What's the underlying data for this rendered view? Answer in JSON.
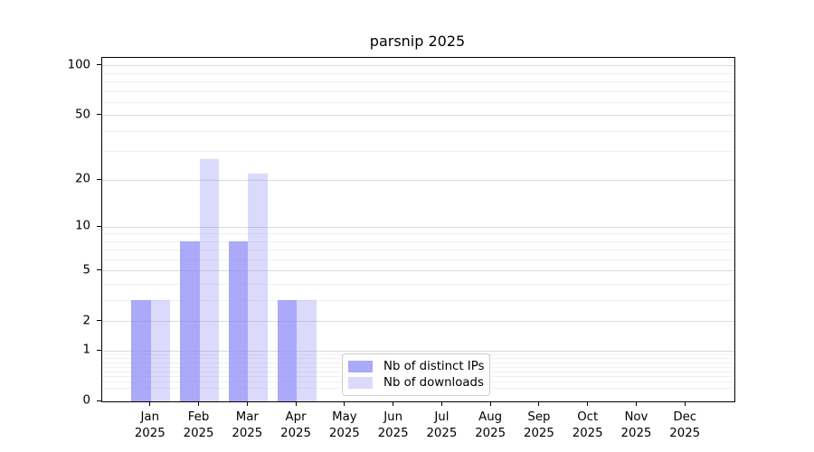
{
  "title": "parsnip 2025",
  "y_axis": {
    "ticks": [
      {
        "label": "100",
        "value": 100
      },
      {
        "label": "50",
        "value": 50
      },
      {
        "label": "20",
        "value": 20
      },
      {
        "label": "10",
        "value": 10
      },
      {
        "label": "5",
        "value": 5
      },
      {
        "label": "2",
        "value": 2
      },
      {
        "label": "1",
        "value": 1
      },
      {
        "label": "0",
        "value": 0
      }
    ]
  },
  "x_axis": {
    "months": [
      "Jan",
      "Feb",
      "Mar",
      "Apr",
      "May",
      "Jun",
      "Jul",
      "Aug",
      "Sep",
      "Oct",
      "Nov",
      "Dec"
    ],
    "year": "2025"
  },
  "legend": {
    "items": [
      {
        "label": "Nb of distinct IPs",
        "color": "rgba(136,134,245,0.7)"
      },
      {
        "label": "Nb of downloads",
        "color": "rgba(136,134,245,0.3)"
      }
    ]
  },
  "colors": {
    "bar_base": "#8886f5",
    "major_grid": "#dcdcdc",
    "minor_grid": "#f0f0f0",
    "axis": "#000000"
  },
  "chart_data": {
    "type": "bar",
    "title": "parsnip 2025",
    "categories": [
      "Jan 2025",
      "Feb 2025",
      "Mar 2025",
      "Apr 2025",
      "May 2025",
      "Jun 2025",
      "Jul 2025",
      "Aug 2025",
      "Sep 2025",
      "Oct 2025",
      "Nov 2025",
      "Dec 2025"
    ],
    "series": [
      {
        "name": "Nb of distinct IPs",
        "values": [
          3,
          8,
          8,
          3,
          0,
          0,
          0,
          0,
          0,
          0,
          0,
          0
        ],
        "color": "rgba(136,134,245,0.7)"
      },
      {
        "name": "Nb of downloads",
        "values": [
          3,
          27,
          22,
          3,
          0,
          0,
          0,
          0,
          0,
          0,
          0,
          0
        ],
        "color": "rgba(136,134,245,0.3)"
      }
    ],
    "xlabel": "",
    "ylabel": "",
    "yscale": "log1p",
    "ylim": [
      0,
      111
    ],
    "major_ticks": [
      0,
      1,
      2,
      5,
      10,
      20,
      50,
      100
    ],
    "minor_ticks": [
      0.2,
      0.3,
      0.4,
      0.5,
      0.6,
      0.7,
      0.8,
      0.9,
      3,
      4,
      6,
      7,
      8,
      9,
      30,
      40,
      60,
      70,
      80,
      90
    ],
    "grid": true,
    "legend_position": "lower center"
  }
}
